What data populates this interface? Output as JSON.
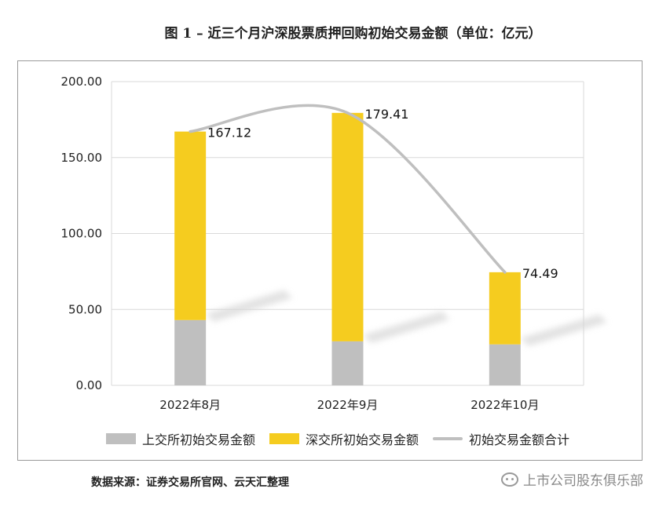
{
  "figure": {
    "title": "图 1 –  近三个月沪深股票质押回购初始交易金额（单位：亿元）",
    "source": "数据来源：证券交易所官网、云天汇整理",
    "watermark": "上市公司股东俱乐部"
  },
  "chart_data": {
    "type": "bar",
    "stacked": true,
    "title": "近三个月沪深股票质押回购初始交易金额（单位：亿元）",
    "categories": [
      "2022年8月",
      "2022年9月",
      "2022年10月"
    ],
    "series": [
      {
        "name": "上交所初始交易金额",
        "type": "bar",
        "color": "#bfbfbf",
        "values": [
          43.0,
          29.0,
          27.0
        ]
      },
      {
        "name": "深交所初始交易金额",
        "type": "bar",
        "color": "#f5cc1f",
        "values": [
          124.12,
          150.41,
          47.49
        ]
      },
      {
        "name": "初始交易金额合计",
        "type": "line",
        "color": "#bfbfbf",
        "values": [
          167.12,
          179.41,
          74.49
        ]
      }
    ],
    "data_labels": [
      "167.12",
      "179.41",
      "74.49"
    ],
    "y_ticks": [
      "0.00",
      "50.00",
      "100.00",
      "150.00",
      "200.00"
    ],
    "ylim": [
      0,
      200
    ],
    "grid": true,
    "legend": "bottom"
  }
}
